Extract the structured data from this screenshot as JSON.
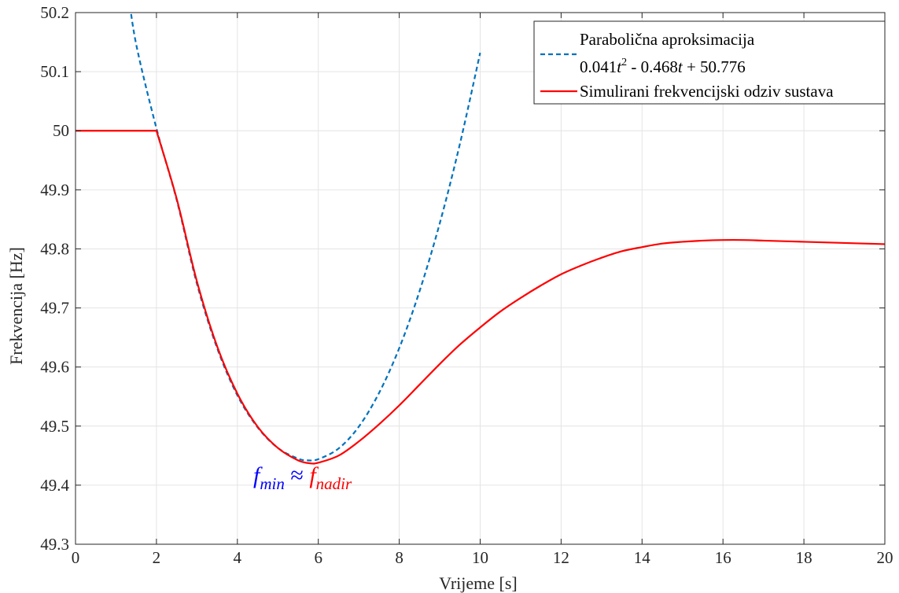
{
  "chart_data": {
    "type": "line",
    "title": "",
    "xlabel": "Vrijeme [s]",
    "ylabel": "Frekvencija [Hz]",
    "xlim": [
      0,
      20
    ],
    "ylim": [
      49.3,
      50.2
    ],
    "x_ticks": [
      "0",
      "2",
      "4",
      "6",
      "8",
      "10",
      "12",
      "14",
      "16",
      "18",
      "20"
    ],
    "y_ticks": [
      "49.3",
      "49.4",
      "49.5",
      "49.6",
      "49.7",
      "49.8",
      "49.9",
      "50",
      "50.1",
      "50.2"
    ],
    "grid": true,
    "legend_position": "top-right",
    "series": [
      {
        "name": "Parabolična aproksimacija",
        "name_line2": {
          "a": "0.041",
          "t1": "t",
          "exp": "2",
          "mid": " - 0.468",
          "t2": "t",
          "tail": " + 50.776"
        },
        "style": "dashed",
        "color": "#0072BD",
        "x": [
          1.3,
          1.5,
          2.0,
          2.5,
          3.0,
          3.5,
          4.0,
          4.5,
          5.0,
          5.5,
          5.75,
          6.0,
          6.5,
          7.0,
          7.5,
          8.0,
          8.5,
          9.0,
          9.5,
          10.0
        ],
        "values": [
          50.237,
          50.146,
          50.004,
          49.883,
          49.741,
          49.632,
          49.552,
          49.498,
          49.463,
          49.445,
          49.442,
          49.444,
          49.462,
          49.499,
          49.556,
          49.632,
          49.728,
          49.843,
          49.978,
          50.132
        ]
      },
      {
        "name": "Simulirani frekvencijski odziv sustava",
        "style": "solid",
        "color": "#FF0000",
        "x": [
          0,
          2.0,
          2.5,
          3.0,
          3.5,
          4.0,
          4.5,
          5.0,
          5.5,
          5.8,
          6.0,
          6.5,
          7.0,
          7.5,
          8.0,
          8.5,
          9.0,
          9.5,
          10.0,
          10.5,
          11.0,
          11.5,
          12.0,
          12.5,
          13.0,
          13.5,
          14.0,
          14.5,
          15.0,
          15.5,
          16.0,
          16.5,
          17.0,
          17.5,
          18.0,
          18.5,
          19.0,
          19.5,
          20.0
        ],
        "values": [
          50.0,
          50.0,
          49.885,
          49.745,
          49.635,
          49.555,
          49.499,
          49.463,
          49.442,
          49.437,
          49.438,
          49.45,
          49.474,
          49.503,
          49.535,
          49.57,
          49.605,
          49.638,
          49.667,
          49.694,
          49.717,
          49.738,
          49.757,
          49.772,
          49.785,
          49.796,
          49.803,
          49.809,
          49.812,
          49.814,
          49.815,
          49.815,
          49.814,
          49.813,
          49.812,
          49.811,
          49.81,
          49.809,
          49.808
        ]
      }
    ],
    "annotation": {
      "f1": "f",
      "sub1": "min",
      "approx": " ≈ ",
      "f2": "f",
      "sub2": "nadir",
      "color1": "#0000FF",
      "color2": "#FF0000"
    }
  }
}
